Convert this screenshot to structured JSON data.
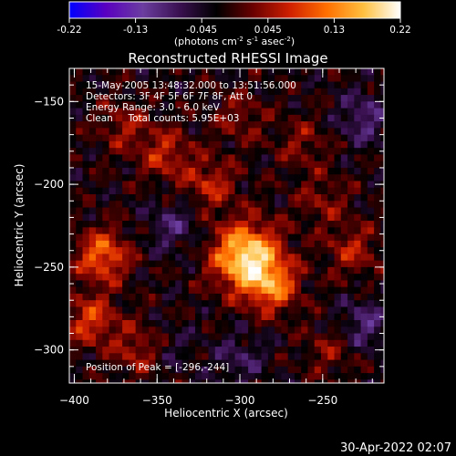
{
  "colorbar": {
    "ticks": [
      "-0.22",
      "-0.13",
      "-0.045",
      "0.045",
      "0.13",
      "0.22"
    ],
    "units_prefix": "(photons cm",
    "units_exp1": "-2",
    "units_mid": " s",
    "units_exp2": "-1",
    "units_mid2": " asec",
    "units_exp3": "-2",
    "units_suffix": ")",
    "range": [
      -0.22,
      0.22
    ],
    "colors": [
      "#0000ff",
      "#5a00c0",
      "#6b3ea0",
      "#3a1050",
      "#000000",
      "#6a0000",
      "#d02000",
      "#ff7000",
      "#ffc040",
      "#ffffff"
    ]
  },
  "chart_data": {
    "type": "heatmap",
    "title": "Reconstructed RHESSI Image",
    "xlabel": "Heliocentric X (arcsec)",
    "ylabel": "Heliocentric Y (arcsec)",
    "xlim": [
      -403,
      -213
    ],
    "ylim": [
      -320,
      -130
    ],
    "xticks": [
      -400,
      -350,
      -300,
      -250
    ],
    "yticks": [
      -300,
      -250,
      -200,
      -150
    ],
    "xtick_labels": [
      "−400",
      "−350",
      "−300",
      "−250"
    ],
    "ytick_labels": [
      "−300",
      "−250",
      "−200",
      "−150"
    ],
    "annotations": [
      "15-May-2005 13:48:32.000 to 13:51:56.000",
      "Detectors: 3F 4F 5F 6F 7F 8F, Att 0",
      "Energy Range: 3.0 - 6.0 keV",
      "Clean     Total counts: 5.95E+03"
    ],
    "peak_label": "Position of Peak = [-296,-244]",
    "peak": [
      -296,
      -244
    ],
    "sources": [
      {
        "x": -296,
        "y": -244,
        "flux": 0.22
      },
      {
        "x": -280,
        "y": -262,
        "flux": 0.12
      },
      {
        "x": -318,
        "y": -200,
        "flux": 0.08
      },
      {
        "x": -383,
        "y": -243,
        "flux": 0.13
      },
      {
        "x": -390,
        "y": -282,
        "flux": 0.1
      },
      {
        "x": -360,
        "y": -300,
        "flux": 0.08
      },
      {
        "x": -345,
        "y": -182,
        "flux": 0.08
      },
      {
        "x": -370,
        "y": -165,
        "flux": 0.06
      },
      {
        "x": -300,
        "y": -160,
        "flux": 0.05
      },
      {
        "x": -262,
        "y": -175,
        "flux": 0.05
      },
      {
        "x": -232,
        "y": -240,
        "flux": 0.07
      },
      {
        "x": -250,
        "y": -210,
        "flux": 0.05
      },
      {
        "x": -245,
        "y": -300,
        "flux": 0.05
      },
      {
        "x": -300,
        "y": -305,
        "flux": -0.05
      },
      {
        "x": -340,
        "y": -225,
        "flux": -0.06
      },
      {
        "x": -225,
        "y": -160,
        "flux": -0.07
      },
      {
        "x": -225,
        "y": -285,
        "flux": -0.07
      },
      {
        "x": -345,
        "y": -300,
        "flux": -0.04
      }
    ]
  },
  "footer": {
    "date": "30-Apr-2022 02:07"
  }
}
